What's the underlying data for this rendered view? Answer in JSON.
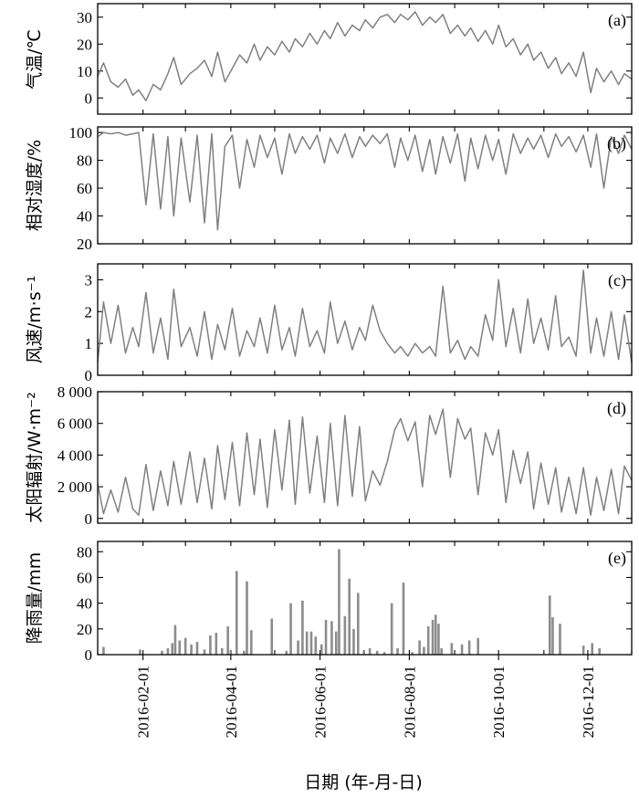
{
  "chart_data": [
    {
      "id": "a",
      "type": "line",
      "panel_label": "(a)",
      "ylabel": "气温/℃",
      "ylim": [
        -6,
        35
      ],
      "yticks": [
        0,
        10,
        20,
        30
      ],
      "ytick_labels": [
        "0",
        "10",
        "20",
        "30"
      ],
      "x": [
        "2016-01-01",
        "2016-01-05",
        "2016-01-10",
        "2016-01-15",
        "2016-01-20",
        "2016-01-25",
        "2016-01-29",
        "2016-02-03",
        "2016-02-08",
        "2016-02-13",
        "2016-02-18",
        "2016-02-22",
        "2016-02-27",
        "2016-03-04",
        "2016-03-09",
        "2016-03-14",
        "2016-03-19",
        "2016-03-23",
        "2016-03-28",
        "2016-04-02",
        "2016-04-07",
        "2016-04-12",
        "2016-04-17",
        "2016-04-21",
        "2016-04-26",
        "2016-05-01",
        "2016-05-06",
        "2016-05-11",
        "2016-05-15",
        "2016-05-20",
        "2016-05-25",
        "2016-05-30",
        "2016-06-04",
        "2016-06-08",
        "2016-06-13",
        "2016-06-18",
        "2016-06-23",
        "2016-06-28",
        "2016-07-02",
        "2016-07-07",
        "2016-07-12",
        "2016-07-17",
        "2016-07-22",
        "2016-07-26",
        "2016-07-31",
        "2016-08-05",
        "2016-08-10",
        "2016-08-15",
        "2016-08-19",
        "2016-08-24",
        "2016-08-29",
        "2016-09-03",
        "2016-09-08",
        "2016-09-12",
        "2016-09-17",
        "2016-09-22",
        "2016-09-27",
        "2016-10-01",
        "2016-10-06",
        "2016-10-11",
        "2016-10-16",
        "2016-10-21",
        "2016-10-25",
        "2016-10-30",
        "2016-11-04",
        "2016-11-09",
        "2016-11-13",
        "2016-11-18",
        "2016-11-23",
        "2016-11-28",
        "2016-12-03",
        "2016-12-07",
        "2016-12-12",
        "2016-12-17",
        "2016-12-22",
        "2016-12-26",
        "2016-12-31"
      ],
      "values": [
        8,
        13,
        6,
        4,
        7,
        1,
        3,
        -1,
        5,
        3,
        9,
        15,
        5,
        9,
        11,
        14,
        8,
        17,
        6,
        11,
        16,
        13,
        20,
        14,
        19,
        16,
        21,
        17,
        22,
        19,
        24,
        20,
        25,
        22,
        28,
        23,
        27,
        25,
        29,
        26,
        30,
        31,
        28,
        31,
        29,
        32,
        27,
        30,
        28,
        31,
        24,
        27,
        23,
        26,
        21,
        25,
        20,
        27,
        19,
        22,
        16,
        20,
        14,
        17,
        11,
        15,
        9,
        13,
        8,
        17,
        2,
        11,
        6,
        10,
        5,
        9,
        7
      ]
    },
    {
      "id": "b",
      "type": "line",
      "panel_label": "(b)",
      "ylabel": "相对湿度/%",
      "ylim": [
        20,
        104
      ],
      "yticks": [
        20,
        40,
        60,
        80,
        100
      ],
      "ytick_labels": [
        "20",
        "40",
        "60",
        "80",
        "100"
      ],
      "x": [
        "2016-01-01",
        "2016-01-05",
        "2016-01-10",
        "2016-01-15",
        "2016-01-20",
        "2016-01-25",
        "2016-01-29",
        "2016-02-03",
        "2016-02-08",
        "2016-02-13",
        "2016-02-18",
        "2016-02-22",
        "2016-02-27",
        "2016-03-04",
        "2016-03-09",
        "2016-03-14",
        "2016-03-19",
        "2016-03-23",
        "2016-03-28",
        "2016-04-02",
        "2016-04-07",
        "2016-04-12",
        "2016-04-17",
        "2016-04-21",
        "2016-04-26",
        "2016-05-01",
        "2016-05-06",
        "2016-05-11",
        "2016-05-15",
        "2016-05-20",
        "2016-05-25",
        "2016-05-30",
        "2016-06-04",
        "2016-06-08",
        "2016-06-13",
        "2016-06-18",
        "2016-06-23",
        "2016-06-28",
        "2016-07-02",
        "2016-07-07",
        "2016-07-12",
        "2016-07-17",
        "2016-07-22",
        "2016-07-26",
        "2016-07-31",
        "2016-08-05",
        "2016-08-10",
        "2016-08-15",
        "2016-08-19",
        "2016-08-24",
        "2016-08-29",
        "2016-09-03",
        "2016-09-08",
        "2016-09-12",
        "2016-09-17",
        "2016-09-22",
        "2016-09-27",
        "2016-10-01",
        "2016-10-06",
        "2016-10-11",
        "2016-10-16",
        "2016-10-21",
        "2016-10-25",
        "2016-10-30",
        "2016-11-04",
        "2016-11-09",
        "2016-11-13",
        "2016-11-18",
        "2016-11-23",
        "2016-11-28",
        "2016-12-03",
        "2016-12-07",
        "2016-12-12",
        "2016-12-17",
        "2016-12-22",
        "2016-12-26",
        "2016-12-31"
      ],
      "values": [
        97,
        100,
        99,
        100,
        98,
        99,
        100,
        48,
        99,
        45,
        97,
        40,
        96,
        50,
        98,
        35,
        99,
        30,
        90,
        98,
        60,
        95,
        75,
        98,
        82,
        96,
        70,
        99,
        85,
        97,
        88,
        98,
        78,
        96,
        85,
        99,
        82,
        97,
        90,
        98,
        92,
        99,
        75,
        96,
        80,
        98,
        72,
        95,
        70,
        97,
        78,
        99,
        65,
        96,
        74,
        98,
        80,
        95,
        70,
        99,
        85,
        96,
        88,
        98,
        82,
        99,
        90,
        97,
        86,
        98,
        75,
        99,
        60,
        97,
        85,
        98,
        88
      ]
    },
    {
      "id": "c",
      "type": "line",
      "panel_label": "(c)",
      "ylabel": "风速/m·s⁻¹",
      "ylim": [
        0,
        3.5
      ],
      "yticks": [
        0,
        1,
        2,
        3
      ],
      "ytick_labels": [
        "0",
        "1",
        "2",
        "3"
      ],
      "x": [
        "2016-01-01",
        "2016-01-05",
        "2016-01-10",
        "2016-01-15",
        "2016-01-20",
        "2016-01-25",
        "2016-01-29",
        "2016-02-03",
        "2016-02-08",
        "2016-02-13",
        "2016-02-18",
        "2016-02-22",
        "2016-02-27",
        "2016-03-04",
        "2016-03-09",
        "2016-03-14",
        "2016-03-19",
        "2016-03-23",
        "2016-03-28",
        "2016-04-02",
        "2016-04-07",
        "2016-04-12",
        "2016-04-17",
        "2016-04-21",
        "2016-04-26",
        "2016-05-01",
        "2016-05-06",
        "2016-05-11",
        "2016-05-15",
        "2016-05-20",
        "2016-05-25",
        "2016-05-30",
        "2016-06-04",
        "2016-06-08",
        "2016-06-13",
        "2016-06-18",
        "2016-06-23",
        "2016-06-28",
        "2016-07-02",
        "2016-07-07",
        "2016-07-12",
        "2016-07-17",
        "2016-07-22",
        "2016-07-26",
        "2016-07-31",
        "2016-08-05",
        "2016-08-10",
        "2016-08-15",
        "2016-08-19",
        "2016-08-24",
        "2016-08-29",
        "2016-09-03",
        "2016-09-08",
        "2016-09-12",
        "2016-09-17",
        "2016-09-22",
        "2016-09-27",
        "2016-10-01",
        "2016-10-06",
        "2016-10-11",
        "2016-10-16",
        "2016-10-21",
        "2016-10-25",
        "2016-10-30",
        "2016-11-04",
        "2016-11-09",
        "2016-11-13",
        "2016-11-18",
        "2016-11-23",
        "2016-11-28",
        "2016-12-03",
        "2016-12-07",
        "2016-12-12",
        "2016-12-17",
        "2016-12-22",
        "2016-12-26",
        "2016-12-31"
      ],
      "values": [
        0.4,
        2.3,
        1.0,
        2.2,
        0.7,
        1.5,
        0.9,
        2.6,
        0.7,
        1.8,
        0.5,
        2.7,
        0.9,
        1.5,
        0.6,
        2.0,
        0.5,
        1.6,
        0.8,
        2.1,
        0.6,
        1.4,
        0.9,
        1.8,
        0.7,
        2.2,
        0.8,
        1.5,
        0.6,
        2.1,
        0.9,
        1.4,
        0.7,
        2.3,
        1.0,
        1.7,
        0.8,
        1.5,
        1.1,
        2.2,
        1.4,
        1.0,
        0.7,
        0.9,
        0.6,
        1.0,
        0.7,
        0.9,
        0.6,
        2.8,
        0.7,
        1.1,
        0.5,
        0.9,
        0.6,
        1.9,
        1.1,
        3.0,
        0.9,
        2.1,
        0.7,
        2.4,
        1.0,
        1.8,
        0.8,
        2.5,
        0.9,
        1.2,
        0.6,
        3.3,
        0.7,
        1.8,
        0.6,
        2.0,
        0.5,
        1.9,
        0.4
      ]
    },
    {
      "id": "d",
      "type": "line",
      "panel_label": "(d)",
      "ylabel": "太阳辐射/W·m⁻²",
      "ylim": [
        -300,
        8000
      ],
      "yticks": [
        0,
        2000,
        4000,
        6000,
        8000
      ],
      "ytick_labels": [
        "0",
        "2 000",
        "4 000",
        "6 000",
        "8 000"
      ],
      "x": [
        "2016-01-01",
        "2016-01-05",
        "2016-01-10",
        "2016-01-15",
        "2016-01-20",
        "2016-01-25",
        "2016-01-29",
        "2016-02-03",
        "2016-02-08",
        "2016-02-13",
        "2016-02-18",
        "2016-02-22",
        "2016-02-27",
        "2016-03-04",
        "2016-03-09",
        "2016-03-14",
        "2016-03-19",
        "2016-03-23",
        "2016-03-28",
        "2016-04-02",
        "2016-04-07",
        "2016-04-12",
        "2016-04-17",
        "2016-04-21",
        "2016-04-26",
        "2016-05-01",
        "2016-05-06",
        "2016-05-11",
        "2016-05-15",
        "2016-05-20",
        "2016-05-25",
        "2016-05-30",
        "2016-06-04",
        "2016-06-08",
        "2016-06-13",
        "2016-06-18",
        "2016-06-23",
        "2016-06-28",
        "2016-07-02",
        "2016-07-07",
        "2016-07-12",
        "2016-07-17",
        "2016-07-22",
        "2016-07-26",
        "2016-07-31",
        "2016-08-05",
        "2016-08-10",
        "2016-08-15",
        "2016-08-19",
        "2016-08-24",
        "2016-08-29",
        "2016-09-03",
        "2016-09-08",
        "2016-09-12",
        "2016-09-17",
        "2016-09-22",
        "2016-09-27",
        "2016-10-01",
        "2016-10-06",
        "2016-10-11",
        "2016-10-16",
        "2016-10-21",
        "2016-10-25",
        "2016-10-30",
        "2016-11-04",
        "2016-11-09",
        "2016-11-13",
        "2016-11-18",
        "2016-11-23",
        "2016-11-28",
        "2016-12-03",
        "2016-12-07",
        "2016-12-12",
        "2016-12-17",
        "2016-12-22",
        "2016-12-26",
        "2016-12-31"
      ],
      "values": [
        2200,
        300,
        1800,
        400,
        2600,
        600,
        200,
        3400,
        500,
        3000,
        800,
        3600,
        900,
        4200,
        1000,
        3800,
        600,
        4600,
        1200,
        4800,
        800,
        5400,
        1500,
        5000,
        700,
        5600,
        1800,
        6200,
        900,
        6400,
        1600,
        5200,
        1000,
        6000,
        800,
        6500,
        1400,
        5800,
        1100,
        3000,
        2100,
        3600,
        5600,
        6300,
        4900,
        6100,
        2000,
        6500,
        5300,
        6900,
        2600,
        6300,
        5000,
        5700,
        1500,
        5400,
        4000,
        5600,
        1000,
        4300,
        2200,
        4200,
        600,
        3500,
        900,
        3200,
        400,
        2600,
        300,
        3200,
        200,
        2600,
        500,
        3100,
        300,
        3300,
        2400
      ]
    },
    {
      "id": "e",
      "type": "bar",
      "panel_label": "(e)",
      "ylabel": "降雨量/mm",
      "xlabel": "日期 (年-月-日)",
      "ylim": [
        0,
        88
      ],
      "yticks": [
        0,
        20,
        40,
        60,
        80
      ],
      "ytick_labels": [
        "0",
        "20",
        "40",
        "60",
        "80"
      ],
      "x_tick_dates": [
        "2016-02-01",
        "2016-04-01",
        "2016-06-01",
        "2016-08-01",
        "2016-10-01",
        "2016-12-01"
      ],
      "x_tick_labels": [
        "2016-02-01",
        "2016-04-01",
        "2016-06-01",
        "2016-08-01",
        "2016-10-01",
        "2016-12-01"
      ],
      "x": [
        "2016-01-05",
        "2016-01-30",
        "2016-02-14",
        "2016-02-18",
        "2016-02-21",
        "2016-02-23",
        "2016-02-26",
        "2016-03-01",
        "2016-03-05",
        "2016-03-09",
        "2016-03-14",
        "2016-03-18",
        "2016-03-22",
        "2016-03-26",
        "2016-03-30",
        "2016-04-01",
        "2016-04-05",
        "2016-04-10",
        "2016-04-12",
        "2016-04-15",
        "2016-04-29",
        "2016-05-09",
        "2016-05-12",
        "2016-05-17",
        "2016-05-20",
        "2016-05-23",
        "2016-05-26",
        "2016-05-29",
        "2016-06-02",
        "2016-06-05",
        "2016-06-09",
        "2016-06-12",
        "2016-06-14",
        "2016-06-18",
        "2016-06-21",
        "2016-06-24",
        "2016-06-27",
        "2016-07-01",
        "2016-07-05",
        "2016-07-10",
        "2016-07-15",
        "2016-07-20",
        "2016-07-24",
        "2016-07-28",
        "2016-08-03",
        "2016-08-08",
        "2016-08-11",
        "2016-08-14",
        "2016-08-17",
        "2016-08-19",
        "2016-08-21",
        "2016-08-23",
        "2016-08-30",
        "2016-09-06",
        "2016-09-11",
        "2016-09-17",
        "2016-11-05",
        "2016-11-07",
        "2016-11-12",
        "2016-11-28",
        "2016-12-04",
        "2016-12-09"
      ],
      "values": [
        6,
        4,
        3,
        5,
        9,
        23,
        11,
        13,
        8,
        10,
        4,
        15,
        17,
        5,
        22,
        3,
        65,
        3,
        57,
        19,
        28,
        3,
        40,
        11,
        42,
        18,
        18,
        14,
        8,
        27,
        26,
        18,
        82,
        30,
        59,
        20,
        48,
        3,
        5,
        3,
        2,
        40,
        5,
        56,
        2,
        11,
        6,
        22,
        27,
        31,
        24,
        5,
        9,
        8,
        11,
        13,
        46,
        29,
        24,
        7,
        9,
        5
      ]
    }
  ]
}
